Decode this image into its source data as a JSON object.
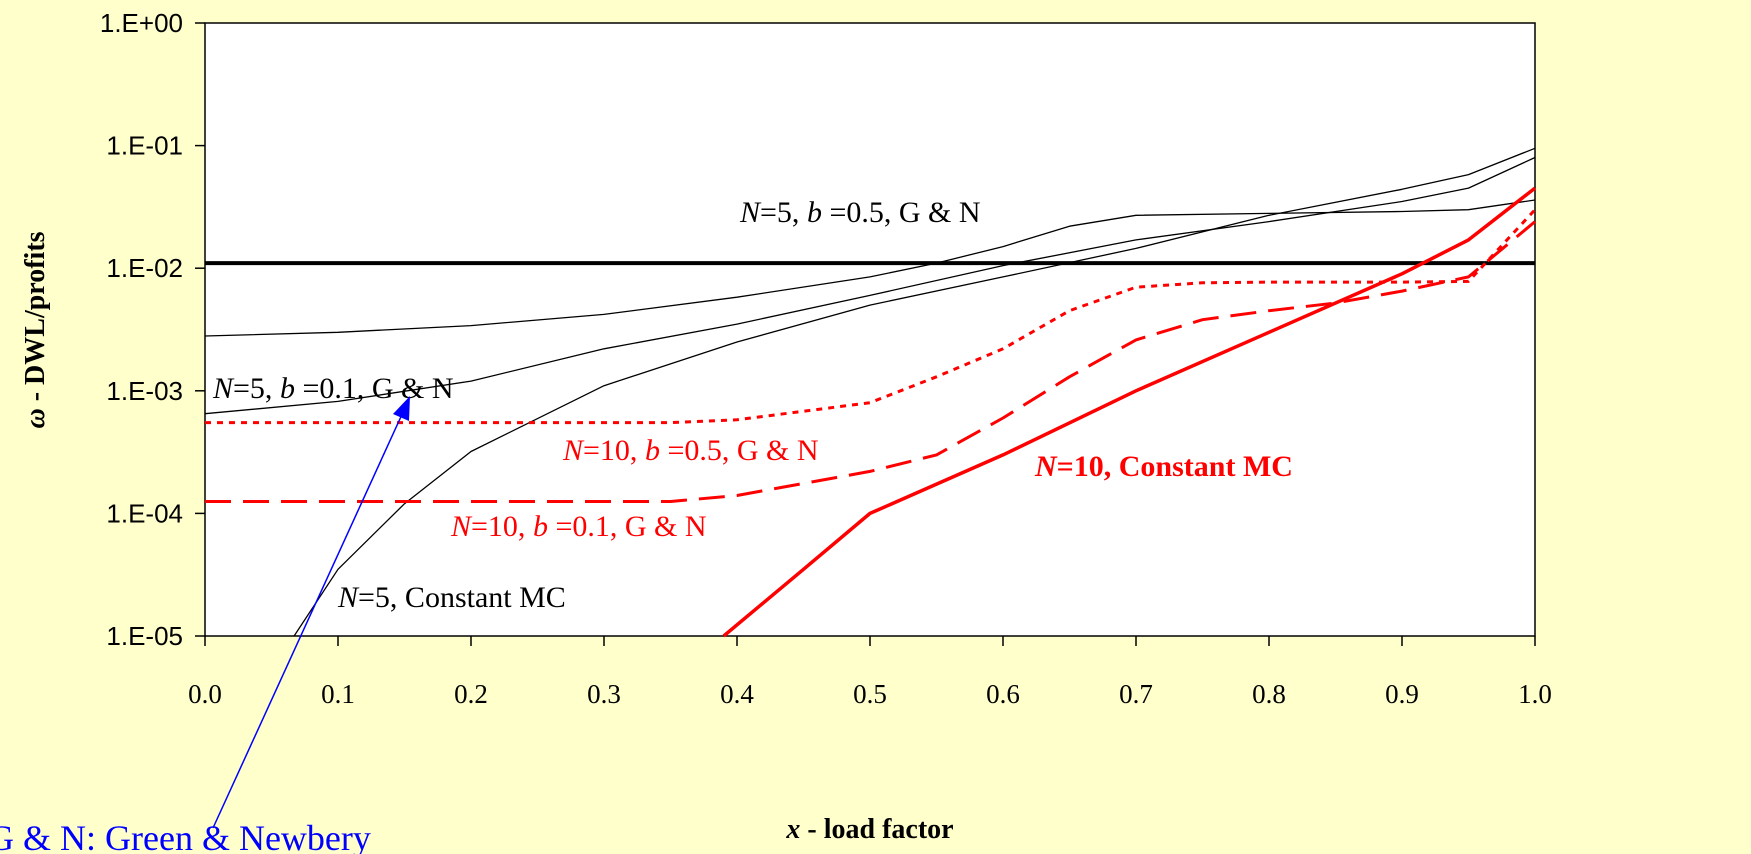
{
  "chart_data": {
    "type": "line",
    "title": "",
    "xlabel": {
      "var": "x",
      "rest": " - load factor"
    },
    "ylabel": {
      "var": "ω",
      "rest": " - DWL/profits"
    },
    "xlim": [
      0,
      1
    ],
    "ylim": [
      1e-05,
      1
    ],
    "yscale": "log",
    "grid": false,
    "x_ticks": [
      "0.0",
      "0.1",
      "0.2",
      "0.3",
      "0.4",
      "0.5",
      "0.6",
      "0.7",
      "0.8",
      "0.9",
      "1.0"
    ],
    "y_ticks": [
      "1.E+00",
      "1.E-01",
      "1.E-02",
      "1.E-03",
      "1.E-04",
      "1.E-05"
    ],
    "series": [
      {
        "key": "n5-b05",
        "color": "#000000",
        "style": "solid-thin",
        "x": [
          0,
          0.1,
          0.2,
          0.3,
          0.4,
          0.5,
          0.55,
          0.6,
          0.65,
          0.7,
          0.8,
          0.9,
          0.95,
          1.0
        ],
        "y": [
          0.0028,
          0.003,
          0.0034,
          0.0042,
          0.0058,
          0.0085,
          0.011,
          0.015,
          0.022,
          0.027,
          0.028,
          0.029,
          0.03,
          0.036
        ]
      },
      {
        "key": "n5-b01",
        "color": "#000000",
        "style": "solid-thin",
        "x": [
          0,
          0.1,
          0.2,
          0.3,
          0.4,
          0.5,
          0.6,
          0.7,
          0.8,
          0.9,
          0.95,
          1.0
        ],
        "y": [
          0.00065,
          0.00082,
          0.0012,
          0.0022,
          0.0035,
          0.006,
          0.0105,
          0.017,
          0.024,
          0.035,
          0.045,
          0.08
        ]
      },
      {
        "key": "n5-const",
        "color": "#000000",
        "style": "solid-thin",
        "x": [
          0.067,
          0.1,
          0.15,
          0.2,
          0.3,
          0.4,
          0.5,
          0.6,
          0.7,
          0.8,
          0.9,
          0.95,
          1.0
        ],
        "y": [
          1e-05,
          3.5e-05,
          0.00012,
          0.00032,
          0.0011,
          0.0025,
          0.005,
          0.0085,
          0.0145,
          0.027,
          0.044,
          0.058,
          0.095
        ]
      },
      {
        "key": "horizontal",
        "color": "#000000",
        "style": "solid-thick",
        "x": [
          0,
          1.0
        ],
        "y": [
          0.011,
          0.011
        ]
      },
      {
        "key": "n10-b05",
        "color": "#FF0000",
        "style": "dotted",
        "x": [
          0,
          0.35,
          0.4,
          0.5,
          0.55,
          0.6,
          0.65,
          0.7,
          0.75,
          0.8,
          0.9,
          0.95,
          1.0
        ],
        "y": [
          0.00055,
          0.00055,
          0.00058,
          0.0008,
          0.0013,
          0.0022,
          0.0045,
          0.007,
          0.0076,
          0.0077,
          0.0077,
          0.0078,
          0.03
        ]
      },
      {
        "key": "n10-b01",
        "color": "#FF0000",
        "style": "dashed",
        "x": [
          0,
          0.35,
          0.4,
          0.5,
          0.55,
          0.6,
          0.65,
          0.7,
          0.75,
          0.8,
          0.85,
          0.9,
          0.95,
          1.0
        ],
        "y": [
          0.000125,
          0.000125,
          0.00014,
          0.00022,
          0.0003,
          0.0006,
          0.0013,
          0.0026,
          0.0038,
          0.0045,
          0.0052,
          0.0065,
          0.0085,
          0.024
        ]
      },
      {
        "key": "n10-const",
        "color": "#FF0000",
        "style": "solid-red",
        "x": [
          0.39,
          0.45,
          0.5,
          0.6,
          0.7,
          0.8,
          0.9,
          0.95,
          1.0
        ],
        "y": [
          1e-05,
          3.5e-05,
          0.0001,
          0.0003,
          0.001,
          0.003,
          0.009,
          0.017,
          0.045
        ]
      }
    ],
    "annotations": [
      {
        "key": "a-n5b05",
        "color": "#000000",
        "bold": false,
        "parts": [
          {
            "t": "N",
            "i": true
          },
          {
            "t": "=5, ",
            "i": false
          },
          {
            "t": "b",
            "i": true
          },
          {
            "t": " =0.5, G & N",
            "i": false
          }
        ]
      },
      {
        "key": "a-n5b01",
        "color": "#000000",
        "bold": false,
        "parts": [
          {
            "t": "N",
            "i": true
          },
          {
            "t": "=5, ",
            "i": false
          },
          {
            "t": "b",
            "i": true
          },
          {
            "t": " =0.1, G & N",
            "i": false
          }
        ]
      },
      {
        "key": "a-n10b05",
        "color": "#FF0000",
        "bold": false,
        "parts": [
          {
            "t": "N",
            "i": true
          },
          {
            "t": "=10, ",
            "i": false
          },
          {
            "t": "b",
            "i": true
          },
          {
            "t": " =0.5, G & N",
            "i": false
          }
        ]
      },
      {
        "key": "a-n10b01",
        "color": "#FF0000",
        "bold": false,
        "parts": [
          {
            "t": "N",
            "i": true
          },
          {
            "t": "=10, ",
            "i": false
          },
          {
            "t": "b",
            "i": true
          },
          {
            "t": " =0.1, G & N",
            "i": false
          }
        ]
      },
      {
        "key": "a-n5const",
        "color": "#000000",
        "bold": false,
        "parts": [
          {
            "t": "N",
            "i": true
          },
          {
            "t": "=5, Constant MC",
            "i": false
          }
        ]
      },
      {
        "key": "a-n10const",
        "color": "#FF0000",
        "bold": true,
        "parts": [
          {
            "t": "N",
            "i": true
          },
          {
            "t": "=10, Constant MC",
            "i": false
          }
        ]
      }
    ],
    "footnote": {
      "text": "G & N: Green & Newbery",
      "color": "#0000FF"
    }
  }
}
